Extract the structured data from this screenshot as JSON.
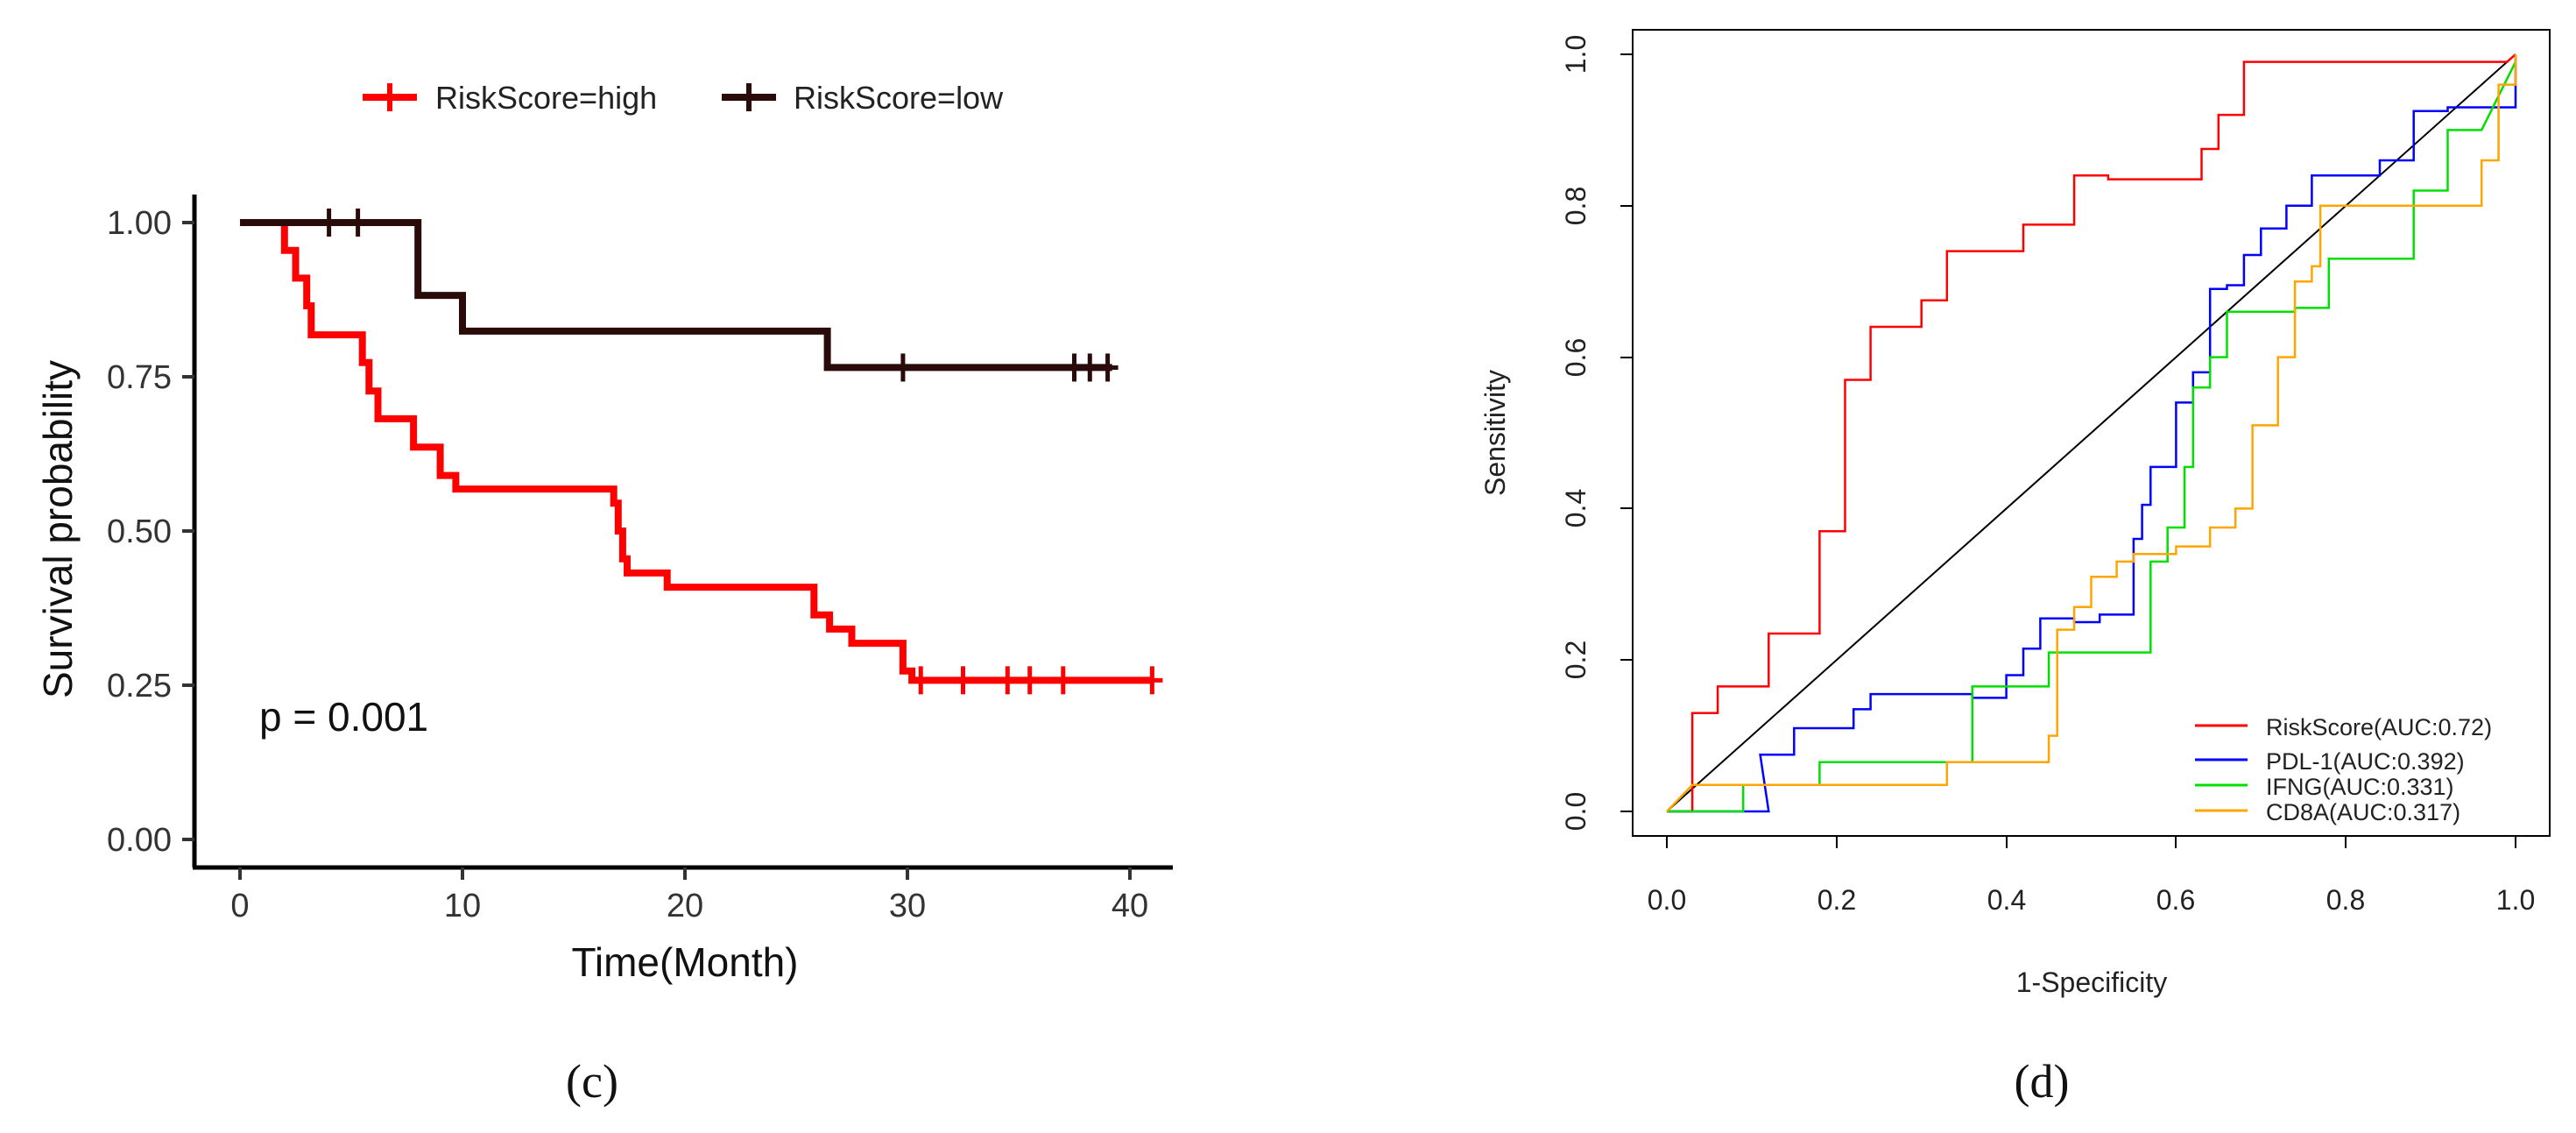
{
  "chart_data": [
    {
      "panel_label": "(c)",
      "type": "line",
      "subtype": "kaplan-meier",
      "title": "",
      "xlabel": "Time(Month)",
      "ylabel": "Survival probability",
      "xlim": [
        -1,
        42
      ],
      "ylim": [
        -0.02,
        1.05
      ],
      "xticks": [
        "0",
        "10",
        "20",
        "30",
        "40"
      ],
      "yticks": [
        "0.00",
        "0.25",
        "0.50",
        "0.75",
        "1.00"
      ],
      "annotation": "p = 0.001",
      "legend_position": "top",
      "series": [
        {
          "name": "RiskScore=high",
          "color": "#ff0000",
          "steps": [
            [
              0,
              1.0
            ],
            [
              2.0,
              0.955
            ],
            [
              2.5,
              0.91
            ],
            [
              3.0,
              0.865
            ],
            [
              3.2,
              0.818
            ],
            [
              5.5,
              0.773
            ],
            [
              5.8,
              0.727
            ],
            [
              6.2,
              0.682
            ],
            [
              7.8,
              0.636
            ],
            [
              9.0,
              0.59
            ],
            [
              9.7,
              0.568
            ],
            [
              16.8,
              0.545
            ],
            [
              17.0,
              0.5
            ],
            [
              17.2,
              0.455
            ],
            [
              17.4,
              0.432
            ],
            [
              19.2,
              0.409
            ],
            [
              25.8,
              0.364
            ],
            [
              26.5,
              0.341
            ],
            [
              27.5,
              0.318
            ],
            [
              29.8,
              0.273
            ],
            [
              30.2,
              0.258
            ],
            [
              41,
              0.258
            ]
          ],
          "censors": [
            [
              30.6,
              0.258
            ],
            [
              32.5,
              0.258
            ],
            [
              34.5,
              0.258
            ],
            [
              35.5,
              0.258
            ],
            [
              37.0,
              0.258
            ],
            [
              41.0,
              0.258
            ]
          ]
        },
        {
          "name": "RiskScore=low",
          "color": "#2b0a0a",
          "steps": [
            [
              0,
              1.0
            ],
            [
              8.0,
              0.882
            ],
            [
              10.0,
              0.824
            ],
            [
              26.4,
              0.765
            ],
            [
              39.2,
              0.765
            ]
          ],
          "censors": [
            [
              4.0,
              1.0
            ],
            [
              5.3,
              1.0
            ],
            [
              29.8,
              0.765
            ],
            [
              37.5,
              0.765
            ],
            [
              38.2,
              0.765
            ],
            [
              39.0,
              0.765
            ]
          ]
        }
      ]
    },
    {
      "panel_label": "(d)",
      "type": "line",
      "subtype": "roc",
      "title": "",
      "xlabel": "1-Specificity",
      "ylabel": "Sensitivity",
      "xlim": [
        -0.04,
        1.04
      ],
      "ylim": [
        -0.04,
        1.04
      ],
      "xticks": [
        "0.0",
        "0.2",
        "0.4",
        "0.6",
        "0.8",
        "1.0"
      ],
      "yticks": [
        "0.0",
        "0.2",
        "0.4",
        "0.6",
        "0.8",
        "1.0"
      ],
      "reference_line": "diagonal",
      "legend_position": "bottom-right",
      "series": [
        {
          "name": "RiskScore(AUC:0.72)",
          "color": "#ff0000",
          "points": [
            [
              0,
              0
            ],
            [
              0.03,
              0
            ],
            [
              0.03,
              0.13
            ],
            [
              0.06,
              0.13
            ],
            [
              0.06,
              0.165
            ],
            [
              0.12,
              0.165
            ],
            [
              0.12,
              0.235
            ],
            [
              0.18,
              0.235
            ],
            [
              0.18,
              0.37
            ],
            [
              0.21,
              0.37
            ],
            [
              0.21,
              0.57
            ],
            [
              0.24,
              0.57
            ],
            [
              0.24,
              0.64
            ],
            [
              0.3,
              0.64
            ],
            [
              0.3,
              0.675
            ],
            [
              0.33,
              0.675
            ],
            [
              0.33,
              0.74
            ],
            [
              0.42,
              0.74
            ],
            [
              0.42,
              0.775
            ],
            [
              0.48,
              0.775
            ],
            [
              0.48,
              0.84
            ],
            [
              0.52,
              0.84
            ],
            [
              0.52,
              0.835
            ],
            [
              0.63,
              0.835
            ],
            [
              0.63,
              0.875
            ],
            [
              0.65,
              0.875
            ],
            [
              0.65,
              0.92
            ],
            [
              0.68,
              0.92
            ],
            [
              0.68,
              0.99
            ],
            [
              0.72,
              0.99
            ],
            [
              0.99,
              0.99
            ],
            [
              1.0,
              1.0
            ]
          ]
        },
        {
          "name": "PDL-1(AUC:0.392)",
          "color": "#0000ff",
          "points": [
            [
              0,
              0
            ],
            [
              0.12,
              0
            ],
            [
              0.11,
              0.075
            ],
            [
              0.15,
              0.075
            ],
            [
              0.15,
              0.11
            ],
            [
              0.22,
              0.11
            ],
            [
              0.22,
              0.135
            ],
            [
              0.24,
              0.135
            ],
            [
              0.24,
              0.155
            ],
            [
              0.36,
              0.155
            ],
            [
              0.36,
              0.15
            ],
            [
              0.4,
              0.15
            ],
            [
              0.4,
              0.18
            ],
            [
              0.42,
              0.18
            ],
            [
              0.42,
              0.215
            ],
            [
              0.44,
              0.215
            ],
            [
              0.44,
              0.255
            ],
            [
              0.48,
              0.255
            ],
            [
              0.48,
              0.25
            ],
            [
              0.51,
              0.25
            ],
            [
              0.51,
              0.26
            ],
            [
              0.55,
              0.26
            ],
            [
              0.55,
              0.36
            ],
            [
              0.56,
              0.36
            ],
            [
              0.56,
              0.405
            ],
            [
              0.57,
              0.405
            ],
            [
              0.57,
              0.455
            ],
            [
              0.6,
              0.455
            ],
            [
              0.6,
              0.54
            ],
            [
              0.62,
              0.54
            ],
            [
              0.62,
              0.58
            ],
            [
              0.64,
              0.58
            ],
            [
              0.64,
              0.69
            ],
            [
              0.66,
              0.69
            ],
            [
              0.66,
              0.695
            ],
            [
              0.68,
              0.695
            ],
            [
              0.68,
              0.735
            ],
            [
              0.7,
              0.735
            ],
            [
              0.7,
              0.77
            ],
            [
              0.73,
              0.77
            ],
            [
              0.73,
              0.8
            ],
            [
              0.76,
              0.8
            ],
            [
              0.76,
              0.84
            ],
            [
              0.84,
              0.84
            ],
            [
              0.84,
              0.86
            ],
            [
              0.88,
              0.86
            ],
            [
              0.88,
              0.925
            ],
            [
              0.92,
              0.925
            ],
            [
              0.92,
              0.93
            ],
            [
              1.0,
              0.93
            ],
            [
              1.0,
              1.0
            ]
          ]
        },
        {
          "name": "IFNG(AUC:0.331)",
          "color": "#00e000",
          "points": [
            [
              0,
              0
            ],
            [
              0.09,
              0
            ],
            [
              0.09,
              0.035
            ],
            [
              0.18,
              0.035
            ],
            [
              0.18,
              0.065
            ],
            [
              0.36,
              0.065
            ],
            [
              0.36,
              0.165
            ],
            [
              0.45,
              0.165
            ],
            [
              0.45,
              0.21
            ],
            [
              0.54,
              0.21
            ],
            [
              0.54,
              0.21
            ],
            [
              0.57,
              0.21
            ],
            [
              0.57,
              0.33
            ],
            [
              0.59,
              0.33
            ],
            [
              0.59,
              0.375
            ],
            [
              0.61,
              0.375
            ],
            [
              0.61,
              0.455
            ],
            [
              0.62,
              0.455
            ],
            [
              0.62,
              0.56
            ],
            [
              0.64,
              0.56
            ],
            [
              0.64,
              0.6
            ],
            [
              0.66,
              0.6
            ],
            [
              0.66,
              0.66
            ],
            [
              0.74,
              0.66
            ],
            [
              0.74,
              0.665
            ],
            [
              0.78,
              0.665
            ],
            [
              0.78,
              0.73
            ],
            [
              0.88,
              0.73
            ],
            [
              0.88,
              0.82
            ],
            [
              0.92,
              0.82
            ],
            [
              0.92,
              0.9
            ],
            [
              0.96,
              0.9
            ],
            [
              1.0,
              0.99
            ]
          ]
        },
        {
          "name": "CD8A(AUC:0.317)",
          "color": "#ffa500",
          "points": [
            [
              0,
              0
            ],
            [
              0.03,
              0.035
            ],
            [
              0.18,
              0.035
            ],
            [
              0.18,
              0.035
            ],
            [
              0.27,
              0.035
            ],
            [
              0.27,
              0.035
            ],
            [
              0.33,
              0.035
            ],
            [
              0.33,
              0.065
            ],
            [
              0.45,
              0.065
            ],
            [
              0.45,
              0.1
            ],
            [
              0.46,
              0.1
            ],
            [
              0.46,
              0.24
            ],
            [
              0.48,
              0.24
            ],
            [
              0.48,
              0.27
            ],
            [
              0.5,
              0.27
            ],
            [
              0.5,
              0.31
            ],
            [
              0.53,
              0.31
            ],
            [
              0.53,
              0.33
            ],
            [
              0.55,
              0.33
            ],
            [
              0.55,
              0.34
            ],
            [
              0.6,
              0.34
            ],
            [
              0.6,
              0.35
            ],
            [
              0.64,
              0.35
            ],
            [
              0.64,
              0.375
            ],
            [
              0.67,
              0.375
            ],
            [
              0.67,
              0.4
            ],
            [
              0.69,
              0.4
            ],
            [
              0.69,
              0.51
            ],
            [
              0.72,
              0.51
            ],
            [
              0.72,
              0.6
            ],
            [
              0.74,
              0.6
            ],
            [
              0.74,
              0.7
            ],
            [
              0.76,
              0.7
            ],
            [
              0.76,
              0.72
            ],
            [
              0.77,
              0.72
            ],
            [
              0.77,
              0.8
            ],
            [
              0.8,
              0.8
            ],
            [
              0.8,
              0.8
            ],
            [
              0.96,
              0.8
            ],
            [
              0.96,
              0.86
            ],
            [
              0.98,
              0.86
            ],
            [
              0.98,
              0.96
            ],
            [
              1.0,
              0.96
            ],
            [
              1.0,
              1.0
            ]
          ]
        }
      ]
    }
  ]
}
